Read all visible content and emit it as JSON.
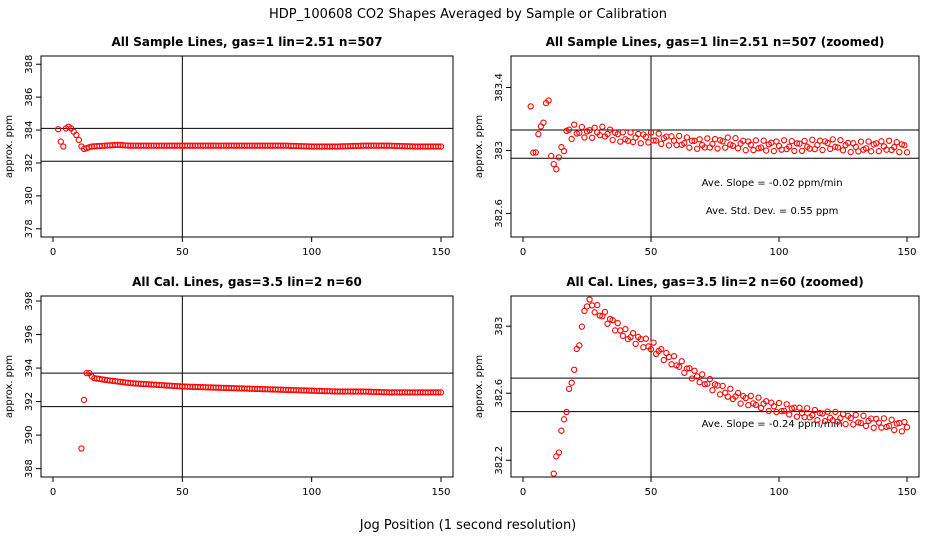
{
  "figure": {
    "title": "HDP_100608  CO2 Shapes Averaged by Sample or Calibration",
    "xlabel": "Jog Position (1 second resolution)",
    "point_color": "#ff0000"
  },
  "chart_data": [
    {
      "type": "scatter",
      "title": "All Sample Lines, gas=1 lin=2.51 n=507",
      "ylabel": "approx. ppm",
      "xlim": [
        0,
        150
      ],
      "ylim": [
        377.5,
        388.5
      ],
      "xticks": [
        0,
        50,
        100,
        150
      ],
      "yticks": [
        378,
        380,
        382,
        384,
        386,
        388
      ],
      "vline": 50,
      "hlines": [
        384.1,
        382.1
      ],
      "annotations": [],
      "series": [
        {
          "points": [
            [
              2,
              384.05
            ],
            [
              3,
              383.3
            ],
            [
              4,
              383.0
            ],
            [
              5,
              384.1
            ],
            [
              6,
              384.2
            ],
            [
              7,
              384.1
            ],
            [
              8,
              383.9
            ],
            [
              9,
              383.7
            ],
            [
              10,
              383.4
            ],
            [
              11,
              383.0
            ],
            [
              12,
              382.85
            ],
            [
              13,
              382.9
            ],
            [
              14,
              382.95
            ],
            [
              15,
              383.0
            ],
            [
              20,
              383.05
            ],
            [
              25,
              383.1
            ],
            [
              30,
              383.05
            ],
            [
              40,
              383.05
            ],
            [
              50,
              383.05
            ],
            [
              60,
              383.05
            ],
            [
              70,
              383.05
            ],
            [
              80,
              383.05
            ],
            [
              90,
              383.05
            ],
            [
              100,
              383.0
            ],
            [
              110,
              383.0
            ],
            [
              120,
              383.05
            ],
            [
              130,
              383.05
            ],
            [
              140,
              383.0
            ],
            [
              150,
              383.0
            ]
          ]
        }
      ]
    },
    {
      "type": "scatter",
      "title": "All Sample Lines, gas=1 lin=2.51 n=507 (zoomed)",
      "ylabel": "approx. ppm",
      "xlim": [
        0,
        150
      ],
      "ylim": [
        382.45,
        383.6
      ],
      "xticks": [
        0,
        50,
        100,
        150
      ],
      "yticks": [
        382.6,
        383.0,
        383.4
      ],
      "vline": 50,
      "hlines": [
        383.13,
        382.95
      ],
      "annotations": [
        "Ave. Slope =  -0.02  ppm/min",
        "Ave. Std. Dev. =  0.55  ppm"
      ],
      "series": [
        {
          "points": [
            [
              3,
              383.28
            ],
            [
              4,
              382.96
            ],
            [
              10,
              383.33
            ],
            [
              11,
              382.98
            ],
            [
              12,
              382.88
            ],
            [
              13,
              382.91
            ],
            [
              14,
              382.95
            ],
            [
              15,
              383.0
            ],
            [
              16,
              383.03
            ],
            [
              17,
              383.1
            ],
            [
              18,
              383.13
            ],
            [
              19,
              383.1
            ],
            [
              20,
              383.13
            ],
            [
              25,
              383.11
            ],
            [
              30,
              383.12
            ],
            [
              40,
              383.08
            ],
            [
              50,
              383.08
            ],
            [
              60,
              383.06
            ],
            [
              70,
              383.04
            ],
            [
              80,
              383.05
            ],
            [
              90,
              383.03
            ],
            [
              100,
              383.03
            ],
            [
              110,
              383.03
            ],
            [
              120,
              383.04
            ],
            [
              130,
              383.02
            ],
            [
              140,
              383.03
            ],
            [
              150,
              383.02
            ]
          ]
        }
      ]
    },
    {
      "type": "scatter",
      "title": "All Cal. Lines, gas=3.5 lin=2 n=60",
      "ylabel": "approx. ppm",
      "xlim": [
        0,
        150
      ],
      "ylim": [
        387.5,
        398.3
      ],
      "xticks": [
        0,
        50,
        100,
        150
      ],
      "yticks": [
        388,
        390,
        392,
        394,
        396,
        398
      ],
      "vline": 50,
      "hlines": [
        393.7,
        391.7
      ],
      "annotations": [],
      "series": [
        {
          "points": [
            [
              11,
              389.2
            ],
            [
              12,
              392.1
            ],
            [
              13,
              393.7
            ],
            [
              14,
              393.7
            ],
            [
              15,
              393.5
            ],
            [
              16,
              393.4
            ],
            [
              20,
              393.3
            ],
            [
              30,
              393.1
            ],
            [
              40,
              393.0
            ],
            [
              50,
              392.9
            ],
            [
              60,
              392.85
            ],
            [
              70,
              392.8
            ],
            [
              80,
              392.75
            ],
            [
              90,
              392.7
            ],
            [
              100,
              392.65
            ],
            [
              110,
              392.6
            ],
            [
              120,
              392.6
            ],
            [
              130,
              392.55
            ],
            [
              140,
              392.55
            ],
            [
              150,
              392.55
            ]
          ]
        }
      ]
    },
    {
      "type": "scatter",
      "title": "All Cal. Lines, gas=3.5 lin=2 n=60 (zoomed)",
      "ylabel": "approx. ppm",
      "xlim": [
        0,
        150
      ],
      "ylim": [
        382.1,
        383.18
      ],
      "xticks": [
        0,
        50,
        100,
        150
      ],
      "yticks": [
        382.2,
        382.6,
        383.0
      ],
      "vline": 50,
      "hlines": [
        382.69,
        382.49
      ],
      "annotations": [
        "Ave. Slope =  -0.24  ppm/min"
      ],
      "series": [
        {
          "points": [
            [
              12,
              382.12
            ],
            [
              25,
              383.15
            ],
            [
              30,
              383.08
            ],
            [
              35,
              383.02
            ],
            [
              40,
              382.95
            ],
            [
              45,
              382.92
            ],
            [
              50,
              382.88
            ],
            [
              55,
              382.83
            ],
            [
              60,
              382.78
            ],
            [
              65,
              382.73
            ],
            [
              70,
              382.68
            ],
            [
              75,
              382.64
            ],
            [
              80,
              382.6
            ],
            [
              85,
              382.57
            ],
            [
              90,
              382.55
            ],
            [
              95,
              382.53
            ],
            [
              100,
              382.51
            ],
            [
              105,
              382.5
            ],
            [
              110,
              382.48
            ],
            [
              115,
              382.47
            ],
            [
              120,
              382.46
            ],
            [
              125,
              382.45
            ],
            [
              130,
              382.44
            ],
            [
              135,
              382.43
            ],
            [
              140,
              382.42
            ],
            [
              145,
              382.41
            ],
            [
              150,
              382.4
            ]
          ]
        }
      ]
    }
  ]
}
